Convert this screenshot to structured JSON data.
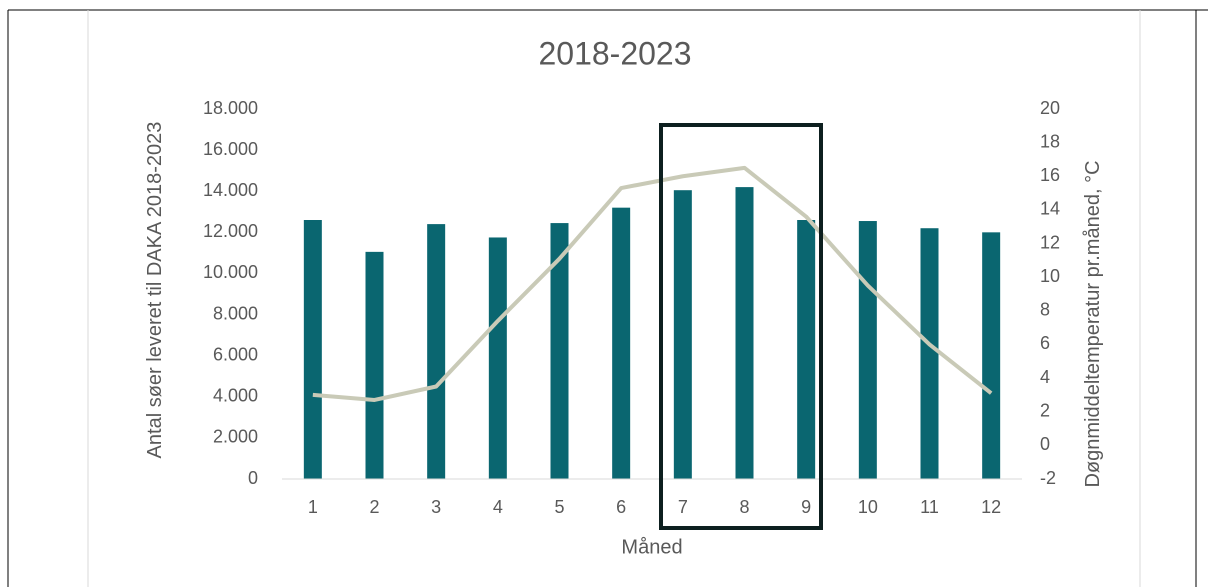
{
  "chart_data": {
    "type": "bar",
    "title": "2018-2023",
    "x_label": "Måned",
    "y_label": "Antal søer leveret til DAKA 2018-2023",
    "y2_label": "Døgnmiddeltemperatur pr.måned, °C",
    "categories": [
      "1",
      "2",
      "3",
      "4",
      "5",
      "6",
      "7",
      "8",
      "9",
      "10",
      "11",
      "12"
    ],
    "series": [
      {
        "type": "bar",
        "color": "#0a6670",
        "values": [
          12600,
          11050,
          12400,
          11750,
          12450,
          13200,
          14050,
          14200,
          12600,
          12550,
          12200,
          12000
        ]
      },
      {
        "type": "line",
        "axis": "y2",
        "color": "#c9cab7",
        "values": [
          3.0,
          2.7,
          3.5,
          7.4,
          11.1,
          15.3,
          16.0,
          16.5,
          13.6,
          9.5,
          6.0,
          3.1
        ]
      }
    ],
    "ylim": [
      0,
      18000
    ],
    "yticks": [
      0,
      {
        "value": 2000,
        "label": "2.000"
      },
      {
        "value": 4000,
        "label": "4.000"
      },
      {
        "value": 6000,
        "label": "6.000"
      },
      {
        "value": 8000,
        "label": "8.000"
      },
      {
        "value": 10000,
        "label": "10.000"
      },
      {
        "value": 12000,
        "label": "12.000"
      },
      {
        "value": 14000,
        "label": "14.000"
      },
      {
        "value": 16000,
        "label": "16.000"
      },
      {
        "value": 18000,
        "label": "18.000"
      }
    ],
    "y2lim": [
      -2,
      20
    ],
    "y2ticks": [
      -2,
      0,
      2,
      4,
      6,
      8,
      10,
      12,
      14,
      16,
      18,
      20
    ],
    "grid": false
  }
}
